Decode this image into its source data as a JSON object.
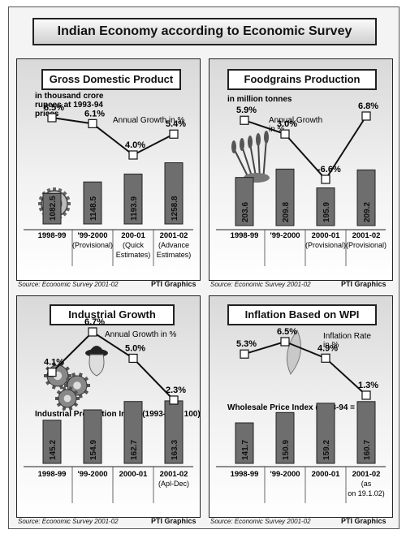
{
  "page": {
    "title": "Indian Economy according to Economic Survey"
  },
  "footer": {
    "source": "Source: Economic Survey 2001-02",
    "credit": "PTI Graphics"
  },
  "chart_data": [
    {
      "type": "bar",
      "title": "Gross Domestic Product",
      "bar_label": "in thousand crore rupees at 1993-94 prices",
      "line_label": "Annual Growth in %",
      "categories": [
        "1998-99",
        "'99-2000 (Provisional)",
        "200-01 (Quick Estimates)",
        "2001-02 (Advance Estimates)"
      ],
      "series": [
        {
          "name": "in thousand crore rupees at 1993-94 prices",
          "values": [
            1082.5,
            1148.5,
            1193.9,
            1258.8
          ],
          "labels": [
            "1082.5",
            "1148.5",
            "1193.9",
            "1258.8"
          ]
        },
        {
          "name": "Annual Growth in %",
          "values": [
            6.5,
            6.1,
            4.0,
            5.4
          ],
          "labels": [
            "6.5%",
            "6.1%",
            "4.0%",
            "5.4%"
          ]
        }
      ]
    },
    {
      "type": "bar",
      "title": "Foodgrains Production",
      "bar_label": "in million tonnes",
      "line_label": "Annual Growth in %",
      "categories": [
        "1998-99",
        "'99-2000",
        "2000-01 (Provisional)",
        "2001-02 (Provisional)"
      ],
      "series": [
        {
          "name": "in million tonnes",
          "values": [
            203.6,
            209.8,
            195.9,
            209.2
          ],
          "labels": [
            "203.6",
            "209.8",
            "195.9",
            "209.2"
          ]
        },
        {
          "name": "Annual Growth in %",
          "values": [
            5.9,
            3.0,
            -6.6,
            6.8
          ],
          "labels": [
            "5.9%",
            "3.0%",
            "-6.6%",
            "6.8%"
          ]
        }
      ]
    },
    {
      "type": "bar",
      "title": "Industrial Growth",
      "bar_label": "Industrial Production Index (1993-94 = 100)",
      "line_label": "Annual Growth in %",
      "categories": [
        "1998-99",
        "'99-2000",
        "2000-01",
        "2001-02 (Apl-Dec)"
      ],
      "series": [
        {
          "name": "Industrial Production Index",
          "values": [
            145.2,
            154.9,
            162.7,
            163.3
          ],
          "labels": [
            "145.2",
            "154.9",
            "162.7",
            "163.3"
          ]
        },
        {
          "name": "Annual Growth in %",
          "values": [
            4.1,
            6.7,
            5.0,
            2.3
          ],
          "labels": [
            "4.1%",
            "6.7%",
            "5.0%",
            "2.3%"
          ]
        }
      ]
    },
    {
      "type": "bar",
      "title": "Inflation Based on WPI",
      "bar_label": "Wholesale Price Index (1993-94 = 100)",
      "line_label": "Inflation Rate in %",
      "categories": [
        "1998-99",
        "'99-2000",
        "2000-01",
        "2001-02 (as on 19.1.02)"
      ],
      "series": [
        {
          "name": "Wholesale Price Index",
          "values": [
            141.7,
            150.9,
            159.2,
            160.7
          ],
          "labels": [
            "141.7",
            "150.9",
            "159.2",
            "160.7"
          ]
        },
        {
          "name": "Inflation Rate in %",
          "values": [
            5.3,
            6.5,
            4.9,
            1.3
          ],
          "labels": [
            "5.3%",
            "6.5%",
            "4.9%",
            "1.3%"
          ]
        }
      ]
    }
  ]
}
